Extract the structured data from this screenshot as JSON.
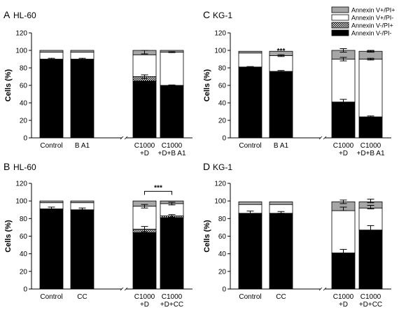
{
  "legend": {
    "entries": [
      {
        "label": "Annexin V+/PI+",
        "fill": "gray"
      },
      {
        "label": "Annexin V+/PI-",
        "fill": "white"
      },
      {
        "label": "Annexin V-/PI+",
        "fill": "checker"
      },
      {
        "label": "Annexin V-/PI-",
        "fill": "black"
      }
    ]
  },
  "colors": {
    "gray": "#a6a6a6",
    "black": "#000000",
    "white": "#ffffff"
  },
  "chart_data": [
    {
      "panel": "A",
      "title": "HL-60",
      "type": "bar",
      "stacked": true,
      "ylabel": "Cells (%)",
      "ylim": [
        0,
        120
      ],
      "yticks": [
        "0",
        "20",
        "40",
        "60",
        "80",
        "100",
        "120"
      ],
      "categories": [
        {
          "lines": [
            "Control"
          ]
        },
        {
          "lines": [
            "B A1"
          ]
        },
        {
          "lines": [
            "C1000",
            "+D"
          ]
        },
        {
          "lines": [
            "C1000",
            "+D+B A1"
          ]
        }
      ],
      "series": [
        {
          "name": "Annexin V-/PI-",
          "values": [
            90,
            90,
            65,
            60
          ]
        },
        {
          "name": "Annexin V-/PI+",
          "values": [
            0,
            0,
            5,
            0
          ]
        },
        {
          "name": "Annexin V+/PI-",
          "values": [
            8,
            8,
            25,
            38
          ]
        },
        {
          "name": "Annexin V+/PI+",
          "values": [
            2,
            2,
            5,
            2
          ]
        }
      ],
      "error_bars": [
        {
          "bar": 0,
          "y": 90,
          "err": 1
        },
        {
          "bar": 1,
          "y": 90,
          "err": 1
        },
        {
          "bar": 2,
          "y": 70,
          "err": 2
        },
        {
          "bar": 2,
          "y": 98,
          "err": 2
        },
        {
          "bar": 3,
          "y": 60,
          "err": 0.5
        },
        {
          "bar": 3,
          "y": 98,
          "err": 0.5
        }
      ],
      "annotations": [
        {
          "text": "**",
          "bar": 3,
          "y": 63
        }
      ]
    },
    {
      "panel": "C",
      "title": "KG-1",
      "type": "bar",
      "stacked": true,
      "ylabel": "Cells (%)",
      "ylim": [
        0,
        120
      ],
      "yticks": [
        "0",
        "20",
        "40",
        "60",
        "80",
        "100",
        "120"
      ],
      "categories": [
        {
          "lines": [
            "Control"
          ]
        },
        {
          "lines": [
            "B A1"
          ]
        },
        {
          "lines": [
            "C1000",
            "+D"
          ]
        },
        {
          "lines": [
            "C1000",
            "+D+B A1"
          ]
        }
      ],
      "series": [
        {
          "name": "Annexin V-/PI-",
          "values": [
            81,
            76,
            41,
            24
          ]
        },
        {
          "name": "Annexin V-/PI+",
          "values": [
            0,
            0,
            0,
            0
          ]
        },
        {
          "name": "Annexin V+/PI-",
          "values": [
            16,
            18,
            49,
            66
          ]
        },
        {
          "name": "Annexin V+/PI+",
          "values": [
            2,
            5,
            10,
            9
          ]
        }
      ],
      "error_bars": [
        {
          "bar": 0,
          "y": 81,
          "err": 0.5
        },
        {
          "bar": 1,
          "y": 76,
          "err": 1
        },
        {
          "bar": 1,
          "y": 94,
          "err": 1
        },
        {
          "bar": 2,
          "y": 41,
          "err": 3
        },
        {
          "bar": 2,
          "y": 90,
          "err": 2
        },
        {
          "bar": 2,
          "y": 100,
          "err": 2
        },
        {
          "bar": 3,
          "y": 24,
          "err": 1
        },
        {
          "bar": 3,
          "y": 90,
          "err": 1
        },
        {
          "bar": 3,
          "y": 99,
          "err": 1
        }
      ],
      "annotations": [
        {
          "text": "***",
          "bar": 1,
          "y": 97
        },
        {
          "text": "***",
          "bar": 1,
          "y": 79
        },
        {
          "text": "***",
          "bar": 3,
          "y": 95
        },
        {
          "text": "***",
          "bar": 3,
          "y": 28
        }
      ]
    },
    {
      "panel": "B",
      "title": "HL-60",
      "type": "bar",
      "stacked": true,
      "ylabel": "Cells (%)",
      "ylim": [
        0,
        120
      ],
      "yticks": [
        "0",
        "20",
        "40",
        "60",
        "80",
        "100",
        "120"
      ],
      "categories": [
        {
          "lines": [
            "Control"
          ]
        },
        {
          "lines": [
            "CC"
          ]
        },
        {
          "lines": [
            "C1000",
            "+D"
          ]
        },
        {
          "lines": [
            "C1000",
            "+D+CC"
          ]
        }
      ],
      "series": [
        {
          "name": "Annexin V-/PI-",
          "values": [
            91,
            90,
            64,
            81
          ]
        },
        {
          "name": "Annexin V-/PI+",
          "values": [
            0,
            0,
            4,
            2
          ]
        },
        {
          "name": "Annexin V+/PI-",
          "values": [
            7,
            8,
            26,
            14
          ]
        },
        {
          "name": "Annexin V+/PI+",
          "values": [
            2,
            2,
            6,
            3
          ]
        }
      ],
      "error_bars": [
        {
          "bar": 0,
          "y": 92,
          "err": 1
        },
        {
          "bar": 1,
          "y": 91,
          "err": 1
        },
        {
          "bar": 2,
          "y": 68,
          "err": 3
        },
        {
          "bar": 2,
          "y": 94,
          "err": 2
        },
        {
          "bar": 3,
          "y": 83,
          "err": 1.5
        },
        {
          "bar": 3,
          "y": 97,
          "err": 1.5
        }
      ],
      "bracket": {
        "from": 2,
        "to": 3,
        "y": 111,
        "text": "***"
      }
    },
    {
      "panel": "D",
      "title": "KG-1",
      "type": "bar",
      "stacked": true,
      "ylabel": "Cells (%)",
      "ylim": [
        0,
        120
      ],
      "yticks": [
        "0",
        "20",
        "40",
        "60",
        "80",
        "100",
        "120"
      ],
      "categories": [
        {
          "lines": [
            "Control"
          ]
        },
        {
          "lines": [
            "CC"
          ]
        },
        {
          "lines": [
            "C1000",
            "+D"
          ]
        },
        {
          "lines": [
            "C1000",
            "+D+CC"
          ]
        }
      ],
      "series": [
        {
          "name": "Annexin V-/PI-",
          "values": [
            86,
            86,
            41,
            67
          ]
        },
        {
          "name": "Annexin V-/PI+",
          "values": [
            0,
            0,
            0,
            0
          ]
        },
        {
          "name": "Annexin V+/PI-",
          "values": [
            10,
            10,
            48,
            25
          ]
        },
        {
          "name": "Annexin V+/PI+",
          "values": [
            3,
            3,
            10,
            7
          ]
        }
      ],
      "error_bars": [
        {
          "bar": 0,
          "y": 87,
          "err": 1.5
        },
        {
          "bar": 1,
          "y": 87,
          "err": 1
        },
        {
          "bar": 2,
          "y": 42,
          "err": 3
        },
        {
          "bar": 2,
          "y": 91,
          "err": 2
        },
        {
          "bar": 2,
          "y": 99,
          "err": 2
        },
        {
          "bar": 3,
          "y": 69,
          "err": 3
        },
        {
          "bar": 3,
          "y": 93,
          "err": 2
        },
        {
          "bar": 3,
          "y": 100,
          "err": 2
        }
      ],
      "annotations": [
        {
          "text": "***",
          "bar": 3,
          "y": 75
        }
      ]
    }
  ]
}
